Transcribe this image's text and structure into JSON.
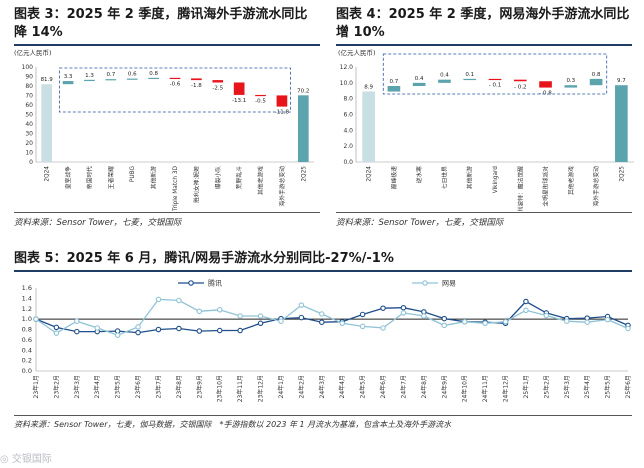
{
  "fig3": {
    "title": "图表 3：2025 年 2 季度，腾讯海外手游流水同比降 14%",
    "title_line1": "图表 3：2025 年 2 季度，腾讯海外手游流水同比",
    "title_line2": "降 14%",
    "source": "资料来源：Sensor Tower，七麦，交银国际"
  },
  "fig4": {
    "title": "图表 4：2025 年 2 季度，网易海外手游流水同比增 10%",
    "title_line1": "图表 4：2025 年 2 季度，网易海外手游流水同比",
    "title_line2": "增 10%",
    "source": "资料来源：Sensor Tower，七麦，交银国际"
  },
  "fig5": {
    "title": "图表 5：2025 年 6 月，腾讯/网易手游流水分别同比-27%/-1%",
    "source": "资料来源：Sensor Tower，七麦，伽马数据，交银国际　*手游指数以 2023 年 1 月流水为基准，包含本土及海外手游流水",
    "watermark": "◎ 交银国际"
  },
  "colors": {
    "start_bar": "#c9dfe4",
    "end_bar": "#5ba3ad",
    "up": "#5ba3ad",
    "down": "#e8141c",
    "tencent_line": "#1f4e8c",
    "netease_line": "#8fc3d6",
    "box": "#2a56a0"
  },
  "chart_data": [
    {
      "id": "fig3",
      "type": "bar",
      "subtype": "waterfall",
      "unit_label": "(亿元人民币)",
      "ylim": [
        0,
        100
      ],
      "yticks": [
        0,
        10,
        20,
        30,
        40,
        50,
        60,
        70,
        80,
        90,
        100
      ],
      "categories": [
        "2Q24",
        "皇室战争",
        "帝国时代",
        "王者荣耀",
        "PUBG",
        "其他新游",
        "Triple Match 3D",
        "胜利女神:妮姬",
        "爆裂小队",
        "荒野乱斗",
        "其他老游戏",
        "海外手游总变动",
        "2Q25"
      ],
      "values": [
        81.9,
        3.3,
        1.3,
        0.7,
        0.6,
        0.8,
        -0.6,
        -1.8,
        -2.5,
        -13.1,
        -0.5,
        -11.8,
        70.2
      ],
      "value_labels": [
        "81.9",
        "3.3",
        "1.3",
        "0.7",
        "0.6",
        "0.8",
        "-0.6",
        "-1.8",
        "-2.5",
        "-13.1",
        "-0.5",
        "-11.8",
        "70.2"
      ],
      "kinds": [
        "total",
        "delta",
        "delta",
        "delta",
        "delta",
        "delta",
        "delta",
        "delta",
        "delta",
        "delta",
        "delta",
        "total_delta",
        "total"
      ]
    },
    {
      "id": "fig4",
      "type": "bar",
      "subtype": "waterfall",
      "unit_label": "(亿元人民币)",
      "ylim": [
        0,
        12
      ],
      "yticks": [
        0.0,
        2.0,
        4.0,
        6.0,
        8.0,
        10.0,
        12.0
      ],
      "ytick_labels": [
        "0.0",
        "2.0",
        "4.0",
        "6.0",
        "8.0",
        "10.0",
        "12.0"
      ],
      "categories": [
        "2Q24",
        "巅峰极速",
        "逆水寒",
        "七日世界",
        "其他新游",
        "Vikingard",
        "哈利波特：魔法觉醒",
        "全明星街球派对",
        "其他老游戏",
        "海外手游总变动",
        "2Q25"
      ],
      "values": [
        8.9,
        0.7,
        0.4,
        0.4,
        0.1,
        -0.1,
        -0.2,
        -0.8,
        0.3,
        0.8,
        9.7
      ],
      "value_labels": [
        "8.9",
        "0.7",
        "0.4",
        "0.4",
        "0.1",
        "- 0.1",
        "- 0.2",
        "- 0.8",
        "0.3",
        "0.8",
        "9.7"
      ],
      "kinds": [
        "total",
        "delta",
        "delta",
        "delta",
        "delta",
        "delta",
        "delta",
        "delta",
        "delta",
        "total_delta",
        "total"
      ]
    },
    {
      "id": "fig5",
      "type": "line",
      "ylim": [
        0,
        1.6
      ],
      "yticks": [
        0.0,
        0.2,
        0.4,
        0.6,
        0.8,
        1.0,
        1.2,
        1.4,
        1.6
      ],
      "ytick_labels": [
        "0.0",
        "0.2",
        "0.4",
        "0.6",
        "0.8",
        "1.0",
        "1.2",
        "1.4",
        "1.6"
      ],
      "x": [
        "23年1月",
        "23年2月",
        "23年3月",
        "23年4月",
        "23年5月",
        "23年6月",
        "23年7月",
        "23年8月",
        "23年9月",
        "23年10月",
        "23年11月",
        "23年12月",
        "24年1月",
        "24年2月",
        "24年3月",
        "24年4月",
        "24年5月",
        "24年6月",
        "24年7月",
        "24年8月",
        "24年9月",
        "24年10月",
        "24年11月",
        "24年12月",
        "25年1月",
        "25年2月",
        "25年3月",
        "25年4月",
        "25年5月",
        "25年6月"
      ],
      "series": [
        {
          "name": "腾讯",
          "values": [
            1.0,
            0.84,
            0.76,
            0.76,
            0.77,
            0.74,
            0.8,
            0.82,
            0.77,
            0.78,
            0.78,
            0.92,
            1.01,
            1.03,
            0.94,
            0.95,
            1.09,
            1.21,
            1.22,
            1.14,
            1.01,
            0.95,
            0.94,
            0.92,
            1.34,
            1.12,
            1.01,
            1.02,
            1.05,
            0.88
          ]
        },
        {
          "name": "网易",
          "values": [
            1.0,
            0.73,
            0.96,
            0.83,
            0.69,
            0.85,
            1.38,
            1.36,
            1.15,
            1.18,
            1.06,
            1.06,
            0.96,
            1.27,
            1.1,
            0.92,
            0.86,
            0.83,
            1.12,
            1.06,
            0.88,
            0.95,
            0.92,
            0.95,
            1.17,
            1.07,
            0.96,
            0.94,
            0.99,
            0.82
          ]
        }
      ]
    }
  ]
}
